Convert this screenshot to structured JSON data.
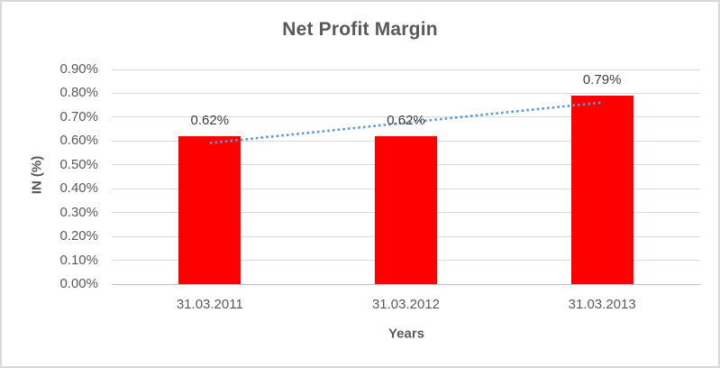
{
  "chart_data": {
    "type": "bar",
    "title": "Net Profit Margin",
    "categories": [
      "31.03.2011",
      "31.03.2012",
      "31.03.2013"
    ],
    "series": [
      {
        "name": "Net Profit Margin",
        "values": [
          0.62,
          0.62,
          0.79
        ]
      }
    ],
    "data_labels": [
      "0.62%",
      "0.62%",
      "0.79%"
    ],
    "xlabel": "Years",
    "ylabel": "IN (%)",
    "ylim": [
      0,
      0.9
    ],
    "ytick_step": 0.1,
    "ytick_labels": [
      "0.00%",
      "0.10%",
      "0.20%",
      "0.30%",
      "0.40%",
      "0.50%",
      "0.60%",
      "0.70%",
      "0.80%",
      "0.90%"
    ],
    "grid": true,
    "legend": "none",
    "trendline": {
      "type": "linear",
      "style": "dotted",
      "applies_to": "Net Profit Margin"
    }
  },
  "colors": {
    "bar": "#FF0000",
    "trendline": "#5B9BD5",
    "title_text": "#595959",
    "tick_text": "#595959",
    "data_label_text": "#404040",
    "gridline": "#D9D9D9",
    "axis_line": "#BFBFBF",
    "frame_border": "#D9D9D9",
    "background": "#FFFFFF"
  }
}
